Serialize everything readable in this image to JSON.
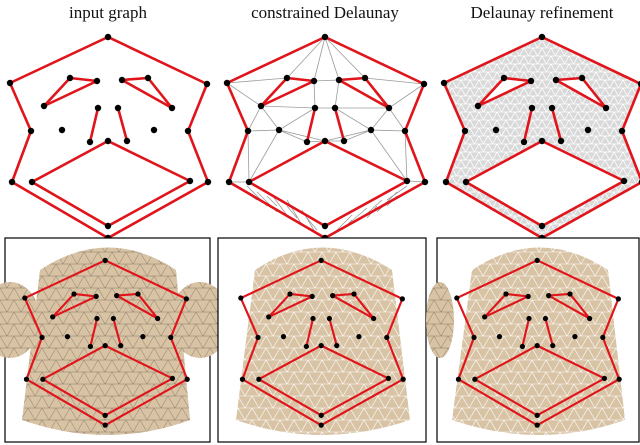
{
  "titles": [
    "input graph",
    "constrained Delaunay",
    "Delaunay refinement"
  ]
}
